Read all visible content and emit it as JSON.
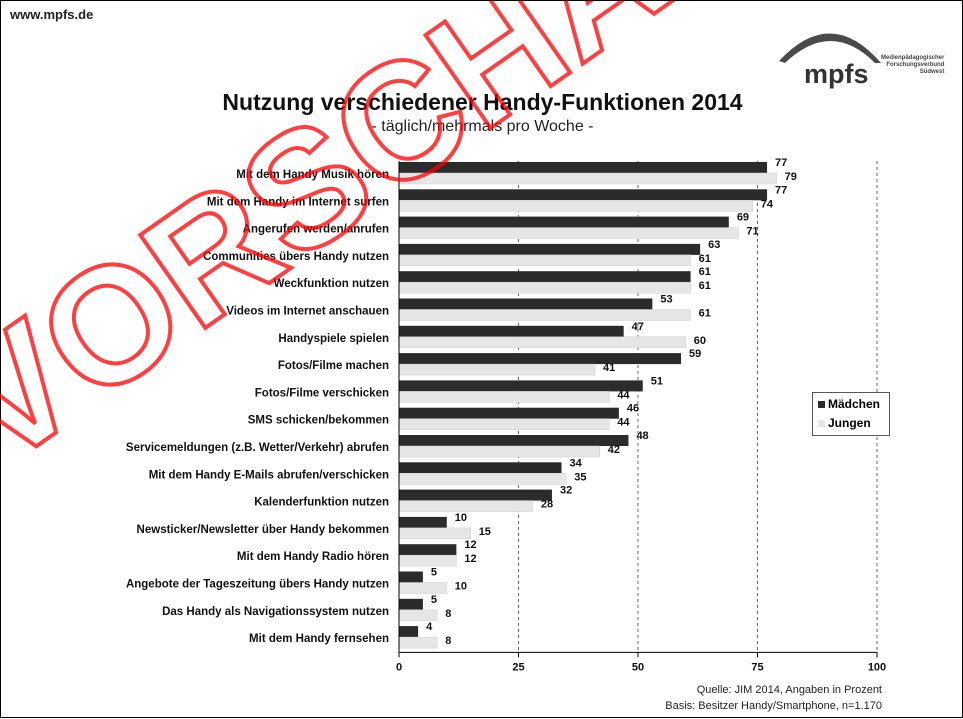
{
  "header": {
    "site": "www.mpfs.de",
    "logo": "mpfs",
    "logo_sub": [
      "Medienpädagogischer",
      "Forschungsverbund",
      "Südwest"
    ]
  },
  "watermark": "VORSCHAU",
  "footer": {
    "source": "Quelle: JIM 2014, Angaben in Prozent",
    "basis": "Basis: Besitzer Handy/Smartphone, n=1.170"
  },
  "colors": {
    "maedchen": "#2b2b2b",
    "jungen": "#e6e6e6",
    "watermark": "#ff0000"
  },
  "chart_data": {
    "type": "bar",
    "orientation": "horizontal",
    "title": "Nutzung verschiedener Handy-Funktionen 2014",
    "subtitle": "- täglich/mehrmals pro Woche -",
    "categories": [
      "Mit dem Handy Musik hören",
      "Mit dem Handy im Internet surfen",
      "Angerufen werden/anrufen",
      "Communities übers Handy nutzen",
      "Weckfunktion nutzen",
      "Videos im Internet anschauen",
      "Handyspiele spielen",
      "Fotos/Filme machen",
      "Fotos/Filme verschicken",
      "SMS schicken/bekommen",
      "Servicemeldungen (z.B. Wetter/Verkehr) abrufen",
      "Mit dem Handy E-Mails abrufen/verschicken",
      "Kalenderfunktion nutzen",
      "Newsticker/Newsletter über Handy bekommen",
      "Mit dem Handy Radio hören",
      "Angebote der Tageszeitung übers Handy nutzen",
      "Das Handy als Navigationssystem nutzen",
      "Mit dem Handy fernsehen"
    ],
    "series": [
      {
        "name": "Mädchen",
        "values": [
          77,
          77,
          69,
          63,
          61,
          53,
          47,
          59,
          51,
          46,
          48,
          34,
          32,
          10,
          12,
          5,
          5,
          4
        ]
      },
      {
        "name": "Jungen",
        "values": [
          79,
          74,
          71,
          61,
          61,
          61,
          60,
          41,
          44,
          44,
          42,
          35,
          28,
          15,
          12,
          10,
          8,
          8
        ]
      }
    ],
    "xlim": [
      0,
      100
    ],
    "xticks": [
      0,
      25,
      50,
      75,
      100
    ],
    "grid": "vertical dashed",
    "legend": "right"
  }
}
